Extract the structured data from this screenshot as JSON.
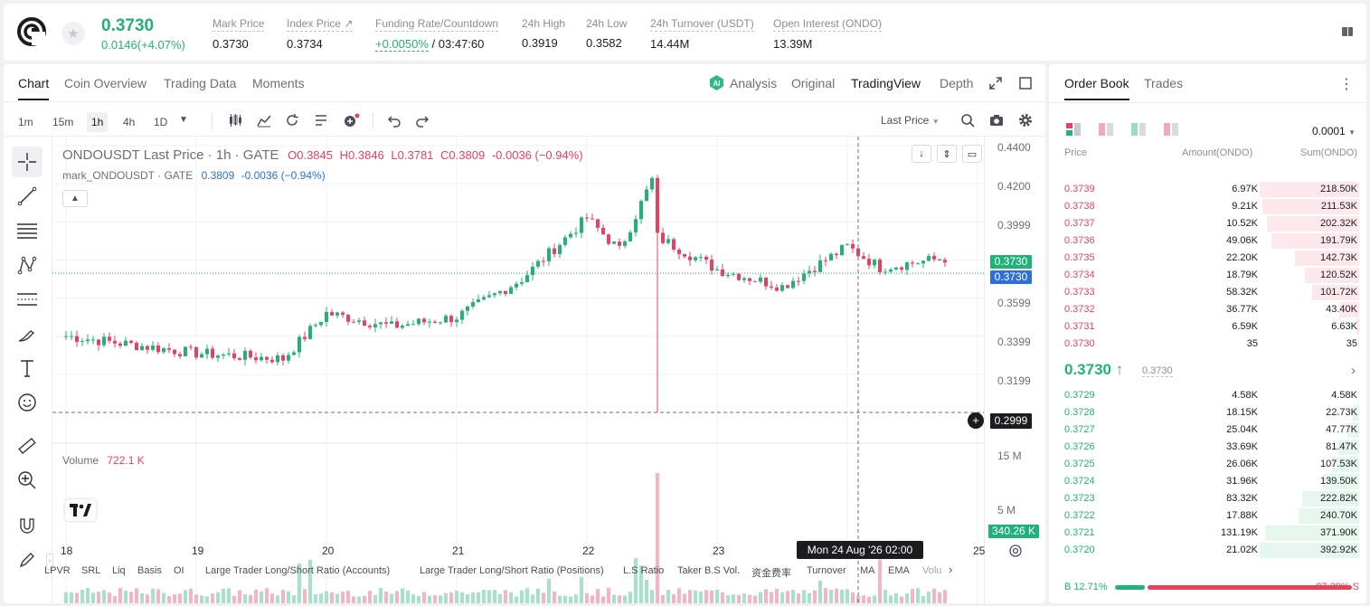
{
  "header": {
    "last_price": "0.3730",
    "change": "0.0146(+4.07%)",
    "stats": [
      {
        "label": "Mark Price",
        "value": "0.3730"
      },
      {
        "label": "Index Price ↗",
        "value": "0.3734"
      },
      {
        "label": "Funding Rate/Countdown",
        "value_green": "+0.0050%",
        "value": "/ 03:47:60"
      },
      {
        "label": "24h High",
        "value": "0.3919"
      },
      {
        "label": "24h Low",
        "value": "0.3582"
      },
      {
        "label": "24h Turnover (USDT)",
        "value": "14.44M"
      },
      {
        "label": "Open Interest (ONDO)",
        "value": "13.39M"
      }
    ]
  },
  "chart_tabs": [
    "Chart",
    "Coin Overview",
    "Trading Data",
    "Moments"
  ],
  "view_tabs": [
    "Analysis",
    "Original",
    "TradingView",
    "Depth"
  ],
  "timeframes": [
    "1m",
    "15m",
    "1h",
    "4h",
    "1D"
  ],
  "active_timeframe": "1h",
  "price_source": "Last Price",
  "legend": {
    "title": "ONDOUSDT Last Price · 1h · GATE",
    "o": "O0.3845",
    "h": "H0.3846",
    "l": "L0.3781",
    "c": "C0.3809",
    "chg": "-0.0036 (−0.94%)",
    "mark_title": "mark_ONDOUSDT · GATE",
    "mark_value": "0.3809",
    "mark_chg": "-0.0036 (−0.94%)",
    "volume_label": "Volume",
    "volume_value": "722.1 K"
  },
  "axis": {
    "price_ticks": [
      "0.4400",
      "0.4200",
      "0.3999",
      "0.3599",
      "0.3399",
      "0.3199"
    ],
    "vol_ticks": [
      "15 M",
      "5 M"
    ],
    "tag_last": "0.3730",
    "tag_mark": "0.3730",
    "tag_cursor": "0.2999",
    "tag_volume": "340.26 K",
    "time_ticks": [
      "18",
      "19",
      "20",
      "21",
      "22",
      "23",
      "25"
    ],
    "crosshair_time": "Mon 24 Aug '26   02:00"
  },
  "indicators": [
    "LPVR",
    "SRL",
    "Liq",
    "Basis",
    "OI",
    "Large Trader Long/Short Ratio (Accounts)",
    "Large Trader Long/Short Ratio (Positions)",
    "L.S Ratio",
    "Taker B.S Vol.",
    "资金费率",
    "Turnover",
    "MA",
    "EMA",
    "Volu"
  ],
  "chart_data": {
    "type": "candlestick",
    "symbol": "ONDOUSDT",
    "interval": "1h",
    "x_range": [
      "18",
      "25"
    ],
    "ylim": [
      0.2999,
      0.44
    ],
    "volume_ylim": [
      0,
      15000000
    ],
    "keypoints": [
      {
        "x": "18 00:00",
        "close": 0.34
      },
      {
        "x": "19 00:00",
        "close": 0.331
      },
      {
        "x": "19 16:00",
        "close": 0.328
      },
      {
        "x": "20 00:00",
        "close": 0.352
      },
      {
        "x": "20 12:00",
        "close": 0.345
      },
      {
        "x": "21 00:00",
        "close": 0.35
      },
      {
        "x": "21 12:00",
        "close": 0.37
      },
      {
        "x": "22 00:00",
        "close": 0.402
      },
      {
        "x": "22 06:00",
        "close": 0.385
      },
      {
        "x": "22 12:00",
        "close": 0.422
      },
      {
        "x": "22 13:00",
        "low": 0.2999,
        "close": 0.392
      },
      {
        "x": "23 00:00",
        "close": 0.375
      },
      {
        "x": "23 12:00",
        "close": 0.366
      },
      {
        "x": "24 00:00",
        "close": 0.387
      },
      {
        "x": "24 06:00",
        "close": 0.376
      },
      {
        "x": "24 18:00",
        "close": 0.3809
      }
    ]
  },
  "orderbook": {
    "tabs": [
      "Order Book",
      "Trades"
    ],
    "precision": "0.0001",
    "columns": [
      "Price",
      "Amount(ONDO)",
      "Sum(ONDO)"
    ],
    "asks": [
      {
        "price": "0.3739",
        "amount": "6.97K",
        "sum": "218.50K",
        "depth": 1.0
      },
      {
        "price": "0.3738",
        "amount": "9.21K",
        "sum": "211.53K",
        "depth": 0.97
      },
      {
        "price": "0.3737",
        "amount": "10.52K",
        "sum": "202.32K",
        "depth": 0.93
      },
      {
        "price": "0.3736",
        "amount": "49.06K",
        "sum": "191.79K",
        "depth": 0.88
      },
      {
        "price": "0.3735",
        "amount": "22.20K",
        "sum": "142.73K",
        "depth": 0.65
      },
      {
        "price": "0.3734",
        "amount": "18.79K",
        "sum": "120.52K",
        "depth": 0.55
      },
      {
        "price": "0.3733",
        "amount": "58.32K",
        "sum": "101.72K",
        "depth": 0.47
      },
      {
        "price": "0.3732",
        "amount": "36.77K",
        "sum": "43.40K",
        "depth": 0.2
      },
      {
        "price": "0.3731",
        "amount": "6.59K",
        "sum": "6.63K",
        "depth": 0.03
      },
      {
        "price": "0.3730",
        "amount": "35",
        "sum": "35",
        "depth": 0.0
      }
    ],
    "mid_price": "0.3730 ↑",
    "mid_mark": "0.3730",
    "bids": [
      {
        "price": "0.3729",
        "amount": "4.58K",
        "sum": "4.58K",
        "depth": 0.01
      },
      {
        "price": "0.3728",
        "amount": "18.15K",
        "sum": "22.73K",
        "depth": 0.06
      },
      {
        "price": "0.3727",
        "amount": "25.04K",
        "sum": "47.77K",
        "depth": 0.12
      },
      {
        "price": "0.3726",
        "amount": "33.69K",
        "sum": "81.47K",
        "depth": 0.21
      },
      {
        "price": "0.3725",
        "amount": "26.06K",
        "sum": "107.53K",
        "depth": 0.27
      },
      {
        "price": "0.3724",
        "amount": "31.96K",
        "sum": "139.50K",
        "depth": 0.36
      },
      {
        "price": "0.3723",
        "amount": "83.32K",
        "sum": "222.82K",
        "depth": 0.57
      },
      {
        "price": "0.3722",
        "amount": "17.88K",
        "sum": "240.70K",
        "depth": 0.61
      },
      {
        "price": "0.3721",
        "amount": "131.19K",
        "sum": "371.90K",
        "depth": 0.95
      },
      {
        "price": "0.3720",
        "amount": "21.02K",
        "sum": "392.92K",
        "depth": 1.0
      }
    ],
    "buy_ratio": "B 12.71%",
    "sell_ratio": "87.29% S",
    "buy_fraction": 0.1271
  },
  "colors": {
    "up": "#21b27a",
    "down": "#e8415f",
    "accent_blue": "#2f6fd8"
  }
}
